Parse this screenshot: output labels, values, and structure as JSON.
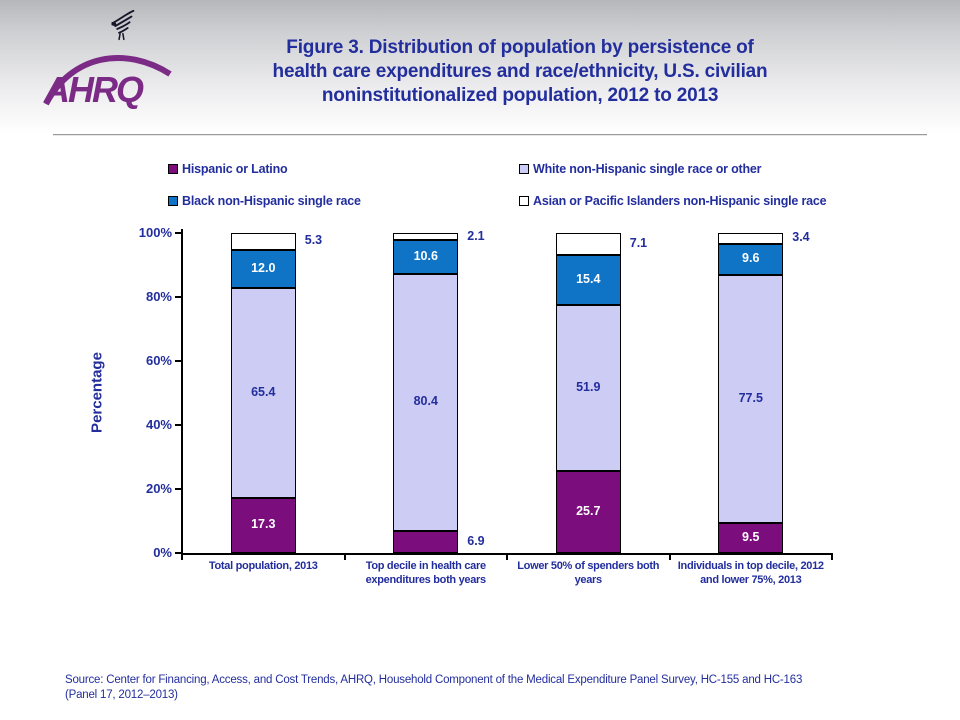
{
  "header": {
    "title_lines": [
      "Figure 3. Distribution of population by persistence of",
      "health care expenditures and race/ethnicity, U.S. civilian",
      "noninstitutionalized population, 2012 to 2013"
    ],
    "logo_text": "AHRQ"
  },
  "colors": {
    "navy_text": "#232E9D",
    "purple_bar": "#7B0D7D",
    "blue_bar": "#0F73C6",
    "lavender_bar": "#CCCCF4",
    "white_bar": "#FFFFFF",
    "logo_purple": "#7B2A85"
  },
  "chart_data": {
    "type": "bar",
    "subtype": "stacked-100",
    "title": "",
    "ylabel": "Percentage",
    "xlabel": "",
    "ylim": [
      0,
      100
    ],
    "ytick_values": [
      0,
      20,
      40,
      60,
      80,
      100
    ],
    "ytick_labels": [
      "0%",
      "20%",
      "40%",
      "60%",
      "80%",
      "100%"
    ],
    "grid": false,
    "legend_position": "top",
    "categories": [
      "Total population, 2013",
      "Top decile in health care\nexpenditures both years",
      "Lower 50% of spenders both\nyears",
      "Individuals in top decile, 2012\nand lower 75%, 2013"
    ],
    "series": [
      {
        "name": "Hispanic or Latino",
        "color": "#7B0D7D",
        "label_color": "#FFFFFF",
        "values": [
          17.3,
          6.9,
          25.7,
          9.5
        ],
        "labels": [
          "17.3",
          "6.9",
          "25.7",
          "9.5"
        ]
      },
      {
        "name": "White non-Hispanic single race or other",
        "color": "#CCCCF4",
        "label_color": "#232E9D",
        "values": [
          65.4,
          80.4,
          51.9,
          77.5
        ],
        "labels": [
          "65.4",
          "80.4",
          "51.9",
          "77.5"
        ]
      },
      {
        "name": "Black non-Hispanic single race",
        "color": "#0F73C6",
        "label_color": "#FFFFFF",
        "values": [
          12.0,
          10.6,
          15.4,
          9.6
        ],
        "labels": [
          "12.0",
          "10.6",
          "15.4",
          "9.6"
        ]
      },
      {
        "name": "Asian or Pacific Islanders non-Hispanic single race",
        "color": "#FFFFFF",
        "label_color": "#232E9D",
        "values": [
          5.3,
          2.1,
          7.1,
          3.4
        ],
        "labels": [
          "5.3",
          "2.1",
          "7.1",
          "3.4"
        ]
      }
    ]
  },
  "footer": {
    "line1": "Source: Center for Financing, Access, and Cost Trends, AHRQ, Household Component of the Medical Expenditure Panel Survey,  HC-155 and HC-163",
    "line2": "(Panel 17, 2012–2013)"
  }
}
